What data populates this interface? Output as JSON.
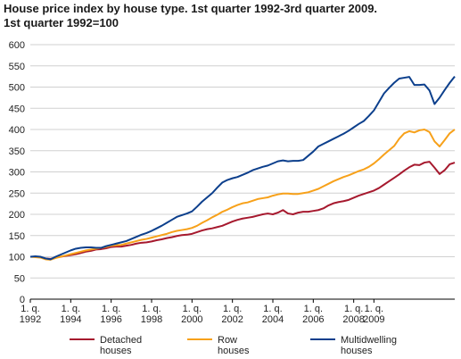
{
  "chart_data": {
    "type": "line",
    "title_line1": "House price index by house type. 1st quarter 1992-3rd quarter 2009.",
    "title_line2": "1st quarter 1992=100",
    "xlabel": "",
    "ylabel": "",
    "ylim": [
      0,
      600
    ],
    "yticks": [
      0,
      50,
      100,
      150,
      200,
      250,
      300,
      350,
      400,
      450,
      500,
      550,
      600
    ],
    "x_start_year": 1992,
    "x_tick_labels": [
      {
        "top": "1. q.",
        "bottom": "1992",
        "year": 1992
      },
      {
        "top": "1. q.",
        "bottom": "1994",
        "year": 1994
      },
      {
        "top": "1. q.",
        "bottom": "1996",
        "year": 1996
      },
      {
        "top": "1. q.",
        "bottom": "1998",
        "year": 1998
      },
      {
        "top": "1. q.",
        "bottom": "2000",
        "year": 2000
      },
      {
        "top": "1. q.",
        "bottom": "2002",
        "year": 2002
      },
      {
        "top": "1. q.",
        "bottom": "2004",
        "year": 2004
      },
      {
        "top": "1. q.",
        "bottom": "2006",
        "year": 2006
      },
      {
        "top": "1. q.",
        "bottom": "2008",
        "year": 2008
      },
      {
        "top": "1. q.",
        "bottom": "2009",
        "year": 2009
      }
    ],
    "grid": true,
    "legend_position": "bottom",
    "series": [
      {
        "name_line1": "Detached",
        "name_line2": "houses",
        "color": "#a6192e",
        "values": [
          100,
          100,
          99,
          96,
          95,
          98,
          100,
          102,
          104,
          106,
          109,
          112,
          114,
          117,
          118,
          120,
          123,
          124,
          124,
          126,
          128,
          131,
          133,
          134,
          136,
          139,
          141,
          144,
          146,
          149,
          151,
          152,
          154,
          158,
          162,
          165,
          167,
          170,
          173,
          178,
          183,
          187,
          190,
          192,
          194,
          197,
          200,
          202,
          200,
          204,
          210,
          202,
          200,
          204,
          206,
          206,
          208,
          210,
          214,
          221,
          226,
          229,
          231,
          234,
          239,
          244,
          248,
          252,
          256,
          262,
          270,
          278,
          286,
          294,
          303,
          311,
          317,
          316,
          322,
          324,
          310,
          295,
          304,
          318,
          322
        ]
      },
      {
        "name_line1": "Row",
        "name_line2": "houses",
        "color": "#f7a11a",
        "values": [
          100,
          99,
          98,
          94,
          93,
          97,
          100,
          103,
          106,
          109,
          112,
          115,
          117,
          119,
          121,
          123,
          126,
          127,
          128,
          131,
          134,
          137,
          140,
          142,
          145,
          148,
          151,
          154,
          158,
          161,
          163,
          165,
          168,
          173,
          180,
          186,
          193,
          199,
          206,
          211,
          217,
          222,
          226,
          228,
          232,
          236,
          238,
          240,
          244,
          247,
          249,
          249,
          248,
          248,
          250,
          252,
          256,
          260,
          266,
          272,
          278,
          283,
          288,
          292,
          297,
          302,
          306,
          312,
          320,
          330,
          341,
          351,
          361,
          378,
          391,
          396,
          393,
          398,
          400,
          394,
          372,
          360,
          375,
          391,
          400
        ]
      },
      {
        "name_line1": "Multidwelling",
        "name_line2": "houses",
        "color": "#0c3f8c",
        "values": [
          100,
          101,
          100,
          96,
          94,
          100,
          105,
          110,
          115,
          119,
          121,
          122,
          122,
          121,
          121,
          125,
          128,
          131,
          134,
          137,
          142,
          147,
          152,
          156,
          161,
          167,
          173,
          180,
          187,
          194,
          198,
          202,
          207,
          218,
          230,
          240,
          250,
          263,
          275,
          281,
          285,
          288,
          293,
          298,
          304,
          308,
          312,
          315,
          320,
          325,
          327,
          325,
          326,
          326,
          328,
          338,
          348,
          360,
          366,
          372,
          378,
          384,
          390,
          397,
          405,
          413,
          420,
          432,
          445,
          465,
          485,
          498,
          510,
          520,
          522,
          524,
          505,
          505,
          506,
          492,
          460,
          475,
          493,
          510,
          525
        ]
      }
    ]
  }
}
